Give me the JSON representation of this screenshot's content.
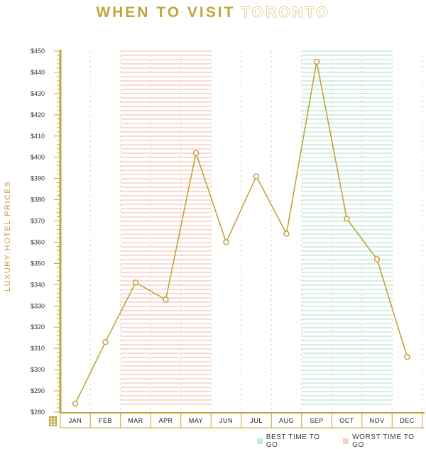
{
  "title": {
    "part1": "WHEN TO VISIT",
    "part2": "TORONTO"
  },
  "legend": {
    "best": "BEST TIME TO GO",
    "worst": "WORST TIME TO GO"
  },
  "colors": {
    "gold": "#c2a33e",
    "best": "#c8e8dc",
    "worst": "#f6cfc7",
    "grid": "#d9cf9e"
  },
  "axis_icon": "building-icon",
  "chart_data": {
    "type": "line",
    "ylabel": "LUXURY HOTEL PRICES",
    "categories": [
      "JAN",
      "FEB",
      "MAR",
      "APR",
      "MAY",
      "JUN",
      "JUL",
      "AUG",
      "SEP",
      "OCT",
      "NOV",
      "DEC"
    ],
    "values": [
      284,
      313,
      341,
      333,
      402,
      360,
      391,
      364,
      445,
      371,
      352,
      306
    ],
    "ylim": [
      280,
      450
    ],
    "yticks": [
      "$280",
      "$290",
      "$300",
      "$310",
      "$320",
      "$330",
      "$340",
      "$350",
      "$360",
      "$370",
      "$380",
      "$390",
      "$400",
      "$410",
      "$420",
      "$430",
      "$440",
      "$450"
    ],
    "worst_period": [
      "MAR",
      "MAY"
    ],
    "best_period": [
      "SEP",
      "NOV"
    ],
    "grid": true,
    "legend_position": "bottom-right"
  }
}
